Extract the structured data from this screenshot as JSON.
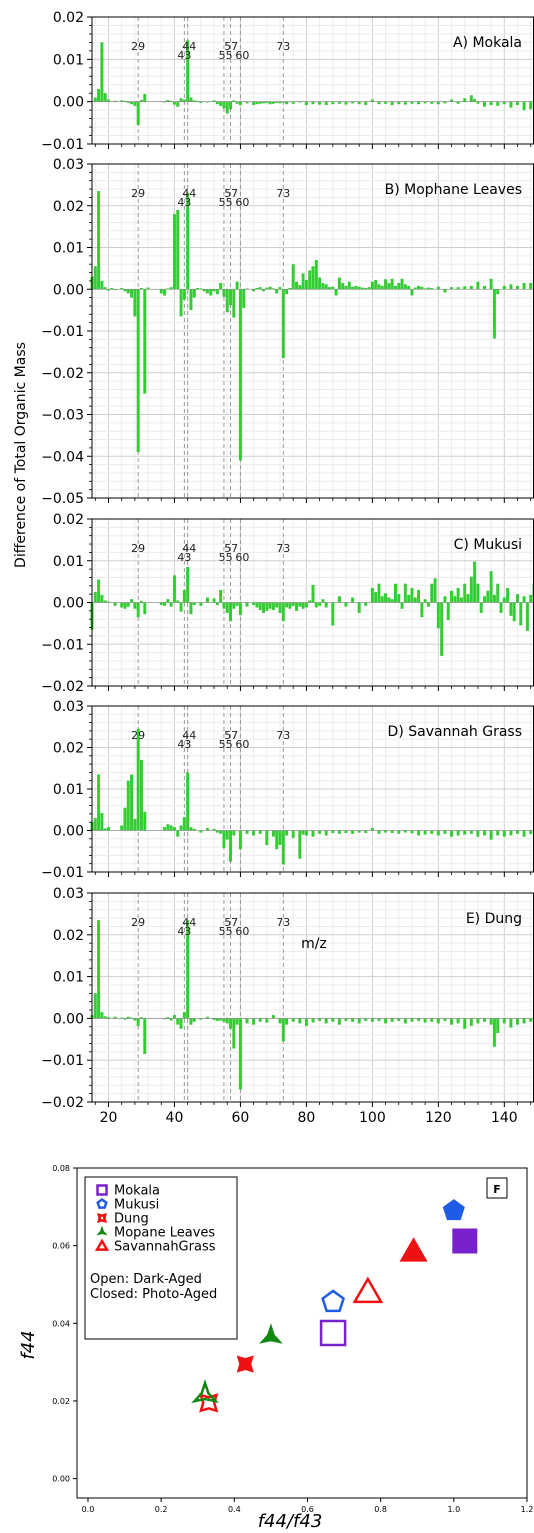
{
  "colors": {
    "bar": "#33cc33",
    "grid_major": "#cfcfcf",
    "grid_minor": "#ececec",
    "refline": "#999999",
    "axis": "#000000",
    "mokala": "#7722cc",
    "mukusi": "#1f5ce6",
    "dung": "#ee1111",
    "mophane": "#118811",
    "savannah": "#ee1111"
  },
  "shared": {
    "ylabel": "Difference of Total Organic Mass",
    "xlabel": "m/z",
    "xlim": [
      15,
      149
    ],
    "xticks": [
      "20",
      "40",
      "60",
      "80",
      "100",
      "120",
      "140"
    ],
    "ref_lines": [
      29,
      43,
      44,
      55,
      57,
      60,
      73
    ],
    "ref_labels": [
      "29",
      "44",
      "43",
      "57",
      "55",
      "60",
      "73"
    ]
  },
  "chart_data": [
    {
      "type": "bar",
      "title": "A) Mokala",
      "ylim": [
        -0.01,
        0.02
      ],
      "yticks": [
        "0.02",
        "0.01",
        "0.00",
        "−0.01"
      ],
      "grid": true,
      "x": [
        16,
        17,
        18,
        19,
        20,
        22,
        24,
        25,
        26,
        27,
        28,
        29,
        30,
        31,
        37,
        38,
        39,
        40,
        41,
        42,
        43,
        44,
        45,
        46,
        47,
        48,
        50,
        52,
        53,
        54,
        55,
        56,
        57,
        58,
        59,
        60,
        62,
        64,
        65,
        66,
        67,
        68,
        69,
        70,
        71,
        72,
        73,
        74,
        76,
        78,
        80,
        82,
        84,
        86,
        88,
        90,
        92,
        94,
        96,
        98,
        100,
        102,
        104,
        106,
        108,
        110,
        112,
        114,
        116,
        118,
        120,
        122,
        124,
        126,
        128,
        130,
        131,
        132,
        134,
        136,
        138,
        140,
        142,
        144,
        146,
        148
      ],
      "values": [
        0.001,
        0.003,
        0.014,
        0.002,
        0.0005,
        0.0002,
        0.0003,
        0.0002,
        -0.0003,
        -0.0006,
        -0.001,
        -0.0055,
        0.0004,
        0.0018,
        -0.0002,
        0.0004,
        0.0002,
        -0.0007,
        -0.0012,
        0.0008,
        0.0005,
        0.0145,
        0.001,
        0.0003,
        0.0002,
        -0.0003,
        -0.0002,
        0.0003,
        -0.0006,
        -0.001,
        -0.0016,
        -0.0028,
        -0.0018,
        0.0003,
        -0.0005,
        -0.0008,
        -0.0004,
        -0.0008,
        -0.0006,
        -0.0005,
        -0.0004,
        -0.0003,
        -0.0006,
        -0.0005,
        -0.0003,
        -0.0004,
        -0.0002,
        -0.0006,
        -0.0005,
        -0.0002,
        -0.0008,
        -0.0006,
        -0.0007,
        -0.0008,
        -0.0006,
        -0.0005,
        -0.0007,
        -0.0004,
        -0.0006,
        -0.0008,
        0.0005,
        -0.0006,
        -0.0005,
        -0.0008,
        -0.0006,
        -0.0007,
        -0.0005,
        -0.0006,
        -0.0004,
        -0.0005,
        -0.0006,
        -0.0004,
        0.0005,
        -0.0005,
        0.0008,
        0.0015,
        0.0006,
        -0.0005,
        -0.0012,
        -0.0008,
        -0.001,
        -0.0006,
        -0.0014,
        -0.0008,
        -0.002,
        -0.0018
      ]
    },
    {
      "type": "bar",
      "title": "B) Mophane Leaves",
      "ylim": [
        -0.05,
        0.03
      ],
      "yticks": [
        "0.03",
        "0.02",
        "0.01",
        "0.00",
        "−0.01",
        "−0.02",
        "−0.03",
        "−0.04",
        "−0.05"
      ],
      "grid": true,
      "x": [
        15,
        16,
        17,
        18,
        19,
        20,
        21,
        22,
        24,
        25,
        26,
        27,
        28,
        29,
        30,
        31,
        32,
        36,
        37,
        38,
        39,
        40,
        41,
        42,
        43,
        44,
        45,
        46,
        47,
        48,
        49,
        50,
        51,
        52,
        53,
        54,
        55,
        56,
        57,
        58,
        59,
        60,
        61,
        62,
        64,
        65,
        66,
        67,
        68,
        69,
        70,
        71,
        72,
        73,
        74,
        75,
        76,
        77,
        78,
        79,
        80,
        81,
        82,
        83,
        84,
        85,
        86,
        87,
        88,
        89,
        90,
        91,
        92,
        93,
        94,
        95,
        96,
        97,
        98,
        99,
        100,
        101,
        102,
        103,
        104,
        105,
        106,
        107,
        108,
        109,
        110,
        111,
        112,
        113,
        114,
        115,
        116,
        117,
        118,
        120,
        122,
        124,
        126,
        128,
        130,
        132,
        134,
        136,
        137,
        138,
        140,
        142,
        144,
        146,
        148
      ],
      "values": [
        0.003,
        0.0055,
        0.0235,
        0.002,
        0.0005,
        -0.0003,
        0.0003,
        -0.0002,
        0.0003,
        -0.0005,
        -0.001,
        -0.002,
        -0.0065,
        -0.039,
        0.0003,
        -0.025,
        0.0004,
        -0.001,
        -0.0015,
        0.0002,
        0.0005,
        0.018,
        0.019,
        -0.0065,
        -0.0025,
        0.023,
        -0.005,
        -0.002,
        0.0003,
        0.0002,
        -0.0005,
        -0.001,
        -0.0015,
        -0.0005,
        -0.0012,
        0.0015,
        -0.0018,
        -0.0055,
        -0.0038,
        -0.0068,
        0.0018,
        -0.041,
        -0.0045,
        0.0002,
        -0.0005,
        0.0003,
        0.0005,
        -0.0005,
        0.0004,
        0.0006,
        0.0002,
        -0.001,
        0.0005,
        -0.0165,
        -0.0012,
        0.0003,
        0.006,
        0.0018,
        0.001,
        0.0038,
        0.0022,
        0.0045,
        0.0055,
        0.007,
        0.0028,
        0.0015,
        0.0012,
        0.0005,
        0.0006,
        -0.0015,
        0.0028,
        0.0015,
        0.0008,
        0.0018,
        0.0006,
        0.0008,
        0.0006,
        0.0004,
        0.0003,
        0.0005,
        0.0018,
        0.0022,
        0.0012,
        0.0008,
        0.0024,
        0.0015,
        0.0025,
        0.0008,
        0.0015,
        0.0025,
        0.0012,
        0.0008,
        -0.0015,
        0.0004,
        0.0008,
        0.0006,
        0.0002,
        0.0004,
        0.0003,
        0.0006,
        -0.0008,
        0.0005,
        0.0005,
        0.0007,
        0.0008,
        0.0018,
        0.0008,
        0.0025,
        -0.0118,
        -0.0012,
        0.0008,
        0.0012,
        0.0008,
        0.0015,
        0.0015
      ]
    },
    {
      "type": "bar",
      "title": "C) Mukusi",
      "ylim": [
        -0.02,
        0.02
      ],
      "yticks": [
        "0.02",
        "0.01",
        "0.00",
        "−0.01",
        "−0.02"
      ],
      "grid": true,
      "x": [
        15,
        16,
        17,
        18,
        19,
        20,
        22,
        24,
        25,
        26,
        27,
        28,
        29,
        30,
        31,
        36,
        37,
        38,
        39,
        40,
        41,
        42,
        43,
        44,
        45,
        46,
        48,
        50,
        52,
        53,
        54,
        55,
        56,
        57,
        58,
        59,
        60,
        62,
        64,
        65,
        66,
        67,
        68,
        69,
        70,
        71,
        72,
        73,
        74,
        75,
        76,
        77,
        78,
        79,
        80,
        81,
        82,
        83,
        84,
        85,
        86,
        88,
        90,
        92,
        94,
        96,
        98,
        100,
        101,
        102,
        103,
        104,
        105,
        106,
        107,
        108,
        109,
        110,
        111,
        112,
        113,
        114,
        115,
        116,
        117,
        118,
        119,
        120,
        121,
        122,
        123,
        124,
        125,
        126,
        127,
        128,
        129,
        130,
        131,
        132,
        133,
        134,
        135,
        136,
        137,
        138,
        139,
        140,
        141,
        142,
        143,
        144,
        145,
        146,
        147,
        148,
        149
      ],
      "values": [
        -0.0065,
        0.0025,
        0.0055,
        0.0018,
        0.0005,
        0.0002,
        -0.0008,
        -0.0012,
        -0.0015,
        -0.001,
        0.0008,
        -0.0015,
        -0.0035,
        0.0004,
        -0.0028,
        -0.0006,
        -0.0008,
        0.0008,
        -0.001,
        0.0065,
        0.0005,
        -0.0022,
        0.003,
        0.0085,
        -0.0028,
        -0.0006,
        -0.0008,
        0.0012,
        0.001,
        -0.0006,
        0.003,
        -0.0015,
        -0.0025,
        -0.0045,
        -0.0015,
        -0.0008,
        -0.003,
        -0.001,
        -0.0006,
        -0.0012,
        -0.0018,
        -0.0025,
        -0.002,
        -0.0015,
        -0.0018,
        -0.0012,
        -0.0025,
        -0.0045,
        -0.0012,
        -0.0015,
        -0.0008,
        -0.002,
        -0.001,
        -0.0015,
        -0.0012,
        0.0005,
        0.0042,
        -0.0012,
        -0.0008,
        0.0008,
        -0.0012,
        -0.0055,
        0.0015,
        -0.001,
        0.0012,
        -0.0025,
        -0.0008,
        0.0035,
        0.0025,
        0.0045,
        0.0015,
        0.0022,
        0.0012,
        0.0008,
        0.0045,
        0.002,
        -0.0015,
        0.0045,
        0.0018,
        0.0035,
        0.0012,
        0.003,
        -0.0035,
        0.0008,
        -0.001,
        0.0045,
        0.0058,
        -0.0062,
        -0.0128,
        0.0015,
        -0.0042,
        0.0028,
        0.0015,
        0.0035,
        0.0012,
        0.0045,
        0.002,
        0.0062,
        0.0098,
        0.0045,
        -0.0025,
        0.0015,
        0.0028,
        0.0075,
        0.0018,
        0.0045,
        -0.0025,
        0.0012,
        0.0035,
        -0.0032,
        -0.0045,
        0.002,
        -0.0055,
        0.0015,
        -0.0068,
        0.0018,
        0.0045
      ]
    },
    {
      "type": "bar",
      "title": "D) Savannah Grass",
      "ylim": [
        -0.01,
        0.03
      ],
      "yticks": [
        "0.03",
        "0.02",
        "0.01",
        "0.00",
        "−0.01"
      ],
      "grid": true,
      "x": [
        15,
        16,
        17,
        18,
        19,
        20,
        24,
        25,
        26,
        27,
        28,
        29,
        30,
        31,
        37,
        38,
        39,
        40,
        41,
        42,
        43,
        44,
        45,
        46,
        48,
        50,
        52,
        53,
        54,
        55,
        56,
        57,
        58,
        60,
        62,
        64,
        66,
        68,
        70,
        71,
        72,
        73,
        74,
        76,
        78,
        79,
        80,
        82,
        84,
        86,
        88,
        90,
        92,
        94,
        96,
        98,
        100,
        102,
        104,
        106,
        108,
        110,
        112,
        114,
        116,
        118,
        120,
        122,
        124,
        126,
        128,
        130,
        132,
        134,
        136,
        138,
        140,
        142,
        144,
        146,
        148
      ],
      "values": [
        0.002,
        0.003,
        0.0135,
        0.0042,
        0.0005,
        0.0008,
        0.0012,
        0.0055,
        0.012,
        0.0135,
        0.0028,
        0.0245,
        0.017,
        0.0045,
        0.0008,
        0.0015,
        0.0012,
        0.0008,
        -0.0015,
        0.0012,
        0.0032,
        0.014,
        0.0008,
        0.0004,
        -0.0005,
        0.0006,
        0.0004,
        -0.0005,
        -0.0008,
        -0.0042,
        -0.0022,
        -0.0075,
        -0.0012,
        -0.0045,
        -0.0008,
        -0.0012,
        -0.0008,
        -0.0035,
        -0.0015,
        -0.0045,
        -0.0035,
        -0.0082,
        -0.0012,
        -0.0018,
        -0.0068,
        -0.001,
        -0.0012,
        -0.0015,
        -0.0008,
        -0.0012,
        -0.0006,
        -0.0008,
        -0.0006,
        -0.0008,
        -0.0005,
        -0.0006,
        0.0006,
        -0.0008,
        -0.0005,
        -0.0006,
        -0.0008,
        -0.0005,
        -0.0007,
        -0.0012,
        -0.001,
        -0.0008,
        -0.0012,
        -0.0008,
        -0.0015,
        -0.0012,
        -0.001,
        -0.0008,
        -0.0015,
        -0.0012,
        -0.0022,
        -0.0012,
        -0.0015,
        -0.0012,
        -0.0008,
        -0.0015,
        -0.0008
      ]
    },
    {
      "type": "bar",
      "title": "E) Dung",
      "ylim": [
        -0.02,
        0.03
      ],
      "yticks": [
        "0.03",
        "0.02",
        "0.01",
        "0.00",
        "−0.01",
        "−0.02"
      ],
      "grid": true,
      "x": [
        15,
        16,
        17,
        18,
        19,
        20,
        22,
        24,
        25,
        26,
        27,
        28,
        29,
        30,
        31,
        37,
        38,
        39,
        40,
        41,
        42,
        43,
        44,
        45,
        46,
        48,
        50,
        52,
        53,
        54,
        55,
        56,
        57,
        58,
        59,
        60,
        62,
        64,
        66,
        68,
        70,
        72,
        73,
        74,
        76,
        78,
        80,
        82,
        84,
        86,
        88,
        90,
        92,
        94,
        96,
        98,
        100,
        102,
        104,
        106,
        108,
        110,
        112,
        114,
        116,
        118,
        120,
        122,
        124,
        126,
        128,
        130,
        132,
        134,
        136,
        137,
        138,
        140,
        142,
        144,
        146,
        148
      ],
      "values": [
        0.0008,
        0.006,
        0.0235,
        0.0015,
        0.0005,
        0.0003,
        0.0004,
        0.0002,
        -0.0003,
        0.0004,
        0.0002,
        -0.0005,
        -0.0018,
        0.0003,
        -0.0085,
        -0.0002,
        0.0003,
        -0.0005,
        0.0008,
        -0.0015,
        -0.0025,
        0.0015,
        0.0235,
        -0.0015,
        -0.0008,
        -0.0003,
        0.0004,
        -0.0004,
        -0.0006,
        -0.0005,
        -0.0008,
        -0.0012,
        -0.0025,
        -0.0072,
        -0.0015,
        -0.017,
        -0.0012,
        -0.0015,
        -0.0008,
        -0.001,
        0.0008,
        -0.0012,
        -0.0055,
        -0.0015,
        -0.0008,
        -0.0012,
        -0.0018,
        -0.001,
        -0.0006,
        -0.0012,
        -0.0008,
        -0.0015,
        -0.0006,
        -0.0008,
        -0.0012,
        -0.0006,
        -0.0008,
        -0.0006,
        -0.0012,
        -0.0008,
        -0.0006,
        -0.0012,
        -0.0008,
        -0.0006,
        -0.001,
        -0.0008,
        -0.0012,
        -0.0006,
        -0.0015,
        -0.0012,
        -0.0025,
        -0.0018,
        -0.0012,
        -0.0008,
        -0.0015,
        -0.0068,
        -0.0035,
        -0.0012,
        -0.0022,
        -0.0015,
        -0.0012,
        -0.0008
      ]
    },
    {
      "type": "scatter",
      "panel_label": "F",
      "xlabel": "f44/f43",
      "ylabel": "f44",
      "xlim": [
        -0.03,
        1.2
      ],
      "ylim": [
        -0.005,
        0.08
      ],
      "xticks": [
        "0.0",
        "0.2",
        "0.4",
        "0.6",
        "0.8",
        "1.0",
        "1.2"
      ],
      "yticks": [
        "0.00",
        "0.02",
        "0.04",
        "0.06",
        "0.08"
      ],
      "legend": {
        "position": "top-left",
        "entries": [
          "Mokala",
          "Mukusi",
          "Dung",
          "Mopane Leaves",
          "SavannahGrass"
        ],
        "note_open": "Open:   Dark-Aged",
        "note_closed": "Closed: Photo-Aged"
      },
      "series": [
        {
          "name": "Mokala",
          "marker": "square",
          "points": [
            {
              "x": 0.67,
              "y": 0.0375,
              "filled": false
            },
            {
              "x": 1.03,
              "y": 0.0612,
              "filled": true
            }
          ]
        },
        {
          "name": "Mukusi",
          "marker": "pentagon",
          "points": [
            {
              "x": 0.67,
              "y": 0.0455,
              "filled": false
            },
            {
              "x": 1.0,
              "y": 0.069,
              "filled": true
            }
          ]
        },
        {
          "name": "Dung",
          "marker": "star4",
          "points": [
            {
              "x": 0.33,
              "y": 0.0195,
              "filled": false
            },
            {
              "x": 0.43,
              "y": 0.0295,
              "filled": true
            }
          ]
        },
        {
          "name": "Mopane Leaves",
          "marker": "tri3",
          "points": [
            {
              "x": 0.32,
              "y": 0.0215,
              "filled": false
            },
            {
              "x": 0.5,
              "y": 0.0365,
              "filled": true
            }
          ]
        },
        {
          "name": "SavannahGrass",
          "marker": "triangle",
          "points": [
            {
              "x": 0.765,
              "y": 0.048,
              "filled": false
            },
            {
              "x": 0.89,
              "y": 0.0585,
              "filled": true
            }
          ]
        }
      ]
    }
  ]
}
